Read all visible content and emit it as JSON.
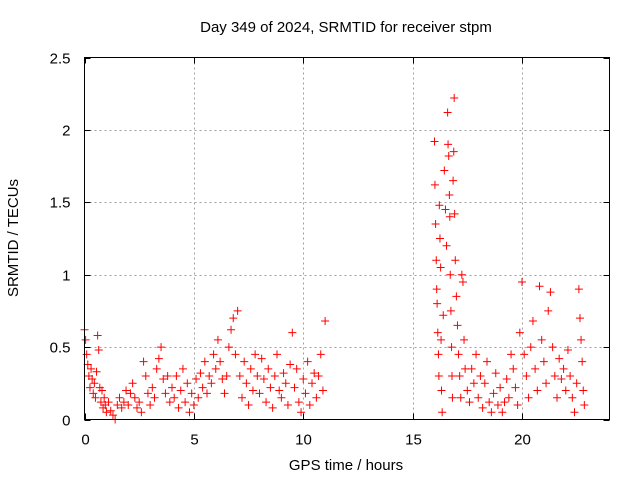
{
  "chart_data": {
    "type": "scatter",
    "title": "Day 349 of 2024, SRMTID for receiver stpm",
    "xlabel": "GPS time / hours",
    "ylabel": "SRMTID / TECUs",
    "xlim": [
      0,
      24
    ],
    "ylim": [
      0,
      2.5
    ],
    "xticks": [
      0,
      5,
      10,
      15,
      20
    ],
    "xtick_labels": [
      "0",
      "5",
      "10",
      "15",
      "20"
    ],
    "yticks": [
      0,
      0.5,
      1,
      1.5,
      2,
      2.5
    ],
    "ytick_labels": [
      "0",
      "0.5",
      "1",
      "1.5",
      "2",
      "2.5"
    ],
    "grid": true,
    "marker": "+",
    "color": "#ff0000",
    "series": [
      {
        "name": "SRMTID",
        "points": [
          [
            0.0,
            0.62
          ],
          [
            0.05,
            0.55
          ],
          [
            0.1,
            0.45
          ],
          [
            0.15,
            0.38
          ],
          [
            0.2,
            0.3
          ],
          [
            0.25,
            0.22
          ],
          [
            0.3,
            0.35
          ],
          [
            0.35,
            0.28
          ],
          [
            0.4,
            0.18
          ],
          [
            0.45,
            0.25
          ],
          [
            0.5,
            0.15
          ],
          [
            0.55,
            0.33
          ],
          [
            0.6,
            0.58
          ],
          [
            0.65,
            0.48
          ],
          [
            0.7,
            0.22
          ],
          [
            0.75,
            0.12
          ],
          [
            0.8,
            0.2
          ],
          [
            0.85,
            0.08
          ],
          [
            0.9,
            0.15
          ],
          [
            0.95,
            0.1
          ],
          [
            1.0,
            0.05
          ],
          [
            1.1,
            0.12
          ],
          [
            1.2,
            0.06
          ],
          [
            1.3,
            0.03
          ],
          [
            1.4,
            0.0
          ],
          [
            1.5,
            0.1
          ],
          [
            1.6,
            0.15
          ],
          [
            1.7,
            0.08
          ],
          [
            1.8,
            0.12
          ],
          [
            1.9,
            0.2
          ],
          [
            2.0,
            0.1
          ],
          [
            2.1,
            0.18
          ],
          [
            2.2,
            0.25
          ],
          [
            2.3,
            0.15
          ],
          [
            2.4,
            0.08
          ],
          [
            2.5,
            0.12
          ],
          [
            2.6,
            0.05
          ],
          [
            2.7,
            0.4
          ],
          [
            2.8,
            0.3
          ],
          [
            2.9,
            0.18
          ],
          [
            3.0,
            0.1
          ],
          [
            3.1,
            0.22
          ],
          [
            3.2,
            0.15
          ],
          [
            3.3,
            0.35
          ],
          [
            3.4,
            0.42
          ],
          [
            3.5,
            0.5
          ],
          [
            3.6,
            0.28
          ],
          [
            3.7,
            0.18
          ],
          [
            3.8,
            0.3
          ],
          [
            3.9,
            0.12
          ],
          [
            4.0,
            0.22
          ],
          [
            4.1,
            0.15
          ],
          [
            4.2,
            0.3
          ],
          [
            4.3,
            0.08
          ],
          [
            4.4,
            0.2
          ],
          [
            4.5,
            0.35
          ],
          [
            4.6,
            0.12
          ],
          [
            4.7,
            0.25
          ],
          [
            4.8,
            0.05
          ],
          [
            4.9,
            0.18
          ],
          [
            5.0,
            0.1
          ],
          [
            5.1,
            0.28
          ],
          [
            5.2,
            0.15
          ],
          [
            5.3,
            0.32
          ],
          [
            5.4,
            0.22
          ],
          [
            5.5,
            0.4
          ],
          [
            5.6,
            0.18
          ],
          [
            5.7,
            0.3
          ],
          [
            5.8,
            0.25
          ],
          [
            5.9,
            0.45
          ],
          [
            6.0,
            0.35
          ],
          [
            6.1,
            0.55
          ],
          [
            6.2,
            0.4
          ],
          [
            6.3,
            0.28
          ],
          [
            6.4,
            0.18
          ],
          [
            6.5,
            0.3
          ],
          [
            6.6,
            0.5
          ],
          [
            6.7,
            0.62
          ],
          [
            6.8,
            0.7
          ],
          [
            6.9,
            0.45
          ],
          [
            7.0,
            0.75
          ],
          [
            7.1,
            0.3
          ],
          [
            7.2,
            0.15
          ],
          [
            7.3,
            0.4
          ],
          [
            7.4,
            0.25
          ],
          [
            7.5,
            0.1
          ],
          [
            7.6,
            0.35
          ],
          [
            7.7,
            0.2
          ],
          [
            7.8,
            0.45
          ],
          [
            7.9,
            0.3
          ],
          [
            8.0,
            0.18
          ],
          [
            8.1,
            0.42
          ],
          [
            8.2,
            0.28
          ],
          [
            8.3,
            0.12
          ],
          [
            8.4,
            0.35
          ],
          [
            8.5,
            0.22
          ],
          [
            8.6,
            0.08
          ],
          [
            8.7,
            0.3
          ],
          [
            8.8,
            0.45
          ],
          [
            8.9,
            0.2
          ],
          [
            9.0,
            0.15
          ],
          [
            9.1,
            0.32
          ],
          [
            9.2,
            0.25
          ],
          [
            9.3,
            0.1
          ],
          [
            9.4,
            0.38
          ],
          [
            9.5,
            0.6
          ],
          [
            9.6,
            0.22
          ],
          [
            9.7,
            0.35
          ],
          [
            9.8,
            0.12
          ],
          [
            9.9,
            0.05
          ],
          [
            10.0,
            0.28
          ],
          [
            10.1,
            0.18
          ],
          [
            10.2,
            0.4
          ],
          [
            10.3,
            0.1
          ],
          [
            10.4,
            0.25
          ],
          [
            10.5,
            0.32
          ],
          [
            10.6,
            0.15
          ],
          [
            10.7,
            0.3
          ],
          [
            10.8,
            0.45
          ],
          [
            10.9,
            0.2
          ],
          [
            11.0,
            0.68
          ],
          [
            16.0,
            1.92
          ],
          [
            16.02,
            1.62
          ],
          [
            16.05,
            1.35
          ],
          [
            16.08,
            1.1
          ],
          [
            16.1,
            0.9
          ],
          [
            16.12,
            0.8
          ],
          [
            16.15,
            0.6
          ],
          [
            16.18,
            0.45
          ],
          [
            16.2,
            0.3
          ],
          [
            16.22,
            1.48
          ],
          [
            16.25,
            1.25
          ],
          [
            16.28,
            1.05
          ],
          [
            16.3,
            0.55
          ],
          [
            16.32,
            0.2
          ],
          [
            16.35,
            0.05
          ],
          [
            16.4,
            0.72
          ],
          [
            16.45,
            1.72
          ],
          [
            16.5,
            1.45
          ],
          [
            16.55,
            1.2
          ],
          [
            16.6,
            2.12
          ],
          [
            16.62,
            1.9
          ],
          [
            16.65,
            1.82
          ],
          [
            16.68,
            1.55
          ],
          [
            16.7,
            1.4
          ],
          [
            16.72,
            1.0
          ],
          [
            16.75,
            0.75
          ],
          [
            16.78,
            0.5
          ],
          [
            16.8,
            0.3
          ],
          [
            16.82,
            0.15
          ],
          [
            16.85,
            1.65
          ],
          [
            16.88,
            1.85
          ],
          [
            16.9,
            2.22
          ],
          [
            16.92,
            1.42
          ],
          [
            16.95,
            1.1
          ],
          [
            17.0,
            0.85
          ],
          [
            17.05,
            0.65
          ],
          [
            17.1,
            0.45
          ],
          [
            17.15,
            0.3
          ],
          [
            17.2,
            0.15
          ],
          [
            17.25,
            1.0
          ],
          [
            17.3,
            0.95
          ],
          [
            17.35,
            0.55
          ],
          [
            17.4,
            0.35
          ],
          [
            17.5,
            0.2
          ],
          [
            17.6,
            0.12
          ],
          [
            17.7,
            0.35
          ],
          [
            17.8,
            0.25
          ],
          [
            17.9,
            0.45
          ],
          [
            18.0,
            0.15
          ],
          [
            18.1,
            0.3
          ],
          [
            18.2,
            0.08
          ],
          [
            18.3,
            0.25
          ],
          [
            18.4,
            0.4
          ],
          [
            18.5,
            0.12
          ],
          [
            18.6,
            0.05
          ],
          [
            18.7,
            0.18
          ],
          [
            18.8,
            0.32
          ],
          [
            18.9,
            0.1
          ],
          [
            19.0,
            0.22
          ],
          [
            19.1,
            0.05
          ],
          [
            19.2,
            0.12
          ],
          [
            19.3,
            0.28
          ],
          [
            19.4,
            0.15
          ],
          [
            19.5,
            0.45
          ],
          [
            19.6,
            0.35
          ],
          [
            19.7,
            0.22
          ],
          [
            19.8,
            0.1
          ],
          [
            19.9,
            0.6
          ],
          [
            20.0,
            0.95
          ],
          [
            20.1,
            0.45
          ],
          [
            20.2,
            0.3
          ],
          [
            20.3,
            0.15
          ],
          [
            20.4,
            0.5
          ],
          [
            20.5,
            0.68
          ],
          [
            20.6,
            0.35
          ],
          [
            20.7,
            0.2
          ],
          [
            20.8,
            0.92
          ],
          [
            20.9,
            0.55
          ],
          [
            21.0,
            0.4
          ],
          [
            21.1,
            0.25
          ],
          [
            21.2,
            0.75
          ],
          [
            21.3,
            0.88
          ],
          [
            21.4,
            0.5
          ],
          [
            21.5,
            0.3
          ],
          [
            21.6,
            0.15
          ],
          [
            21.7,
            0.42
          ],
          [
            21.8,
            0.28
          ],
          [
            21.9,
            0.35
          ],
          [
            22.0,
            0.2
          ],
          [
            22.1,
            0.48
          ],
          [
            22.2,
            0.3
          ],
          [
            22.3,
            0.15
          ],
          [
            22.4,
            0.05
          ],
          [
            22.5,
            0.25
          ],
          [
            22.6,
            0.9
          ],
          [
            22.65,
            0.7
          ],
          [
            22.7,
            0.55
          ],
          [
            22.75,
            0.4
          ],
          [
            22.8,
            0.2
          ],
          [
            22.85,
            0.1
          ]
        ]
      }
    ]
  }
}
